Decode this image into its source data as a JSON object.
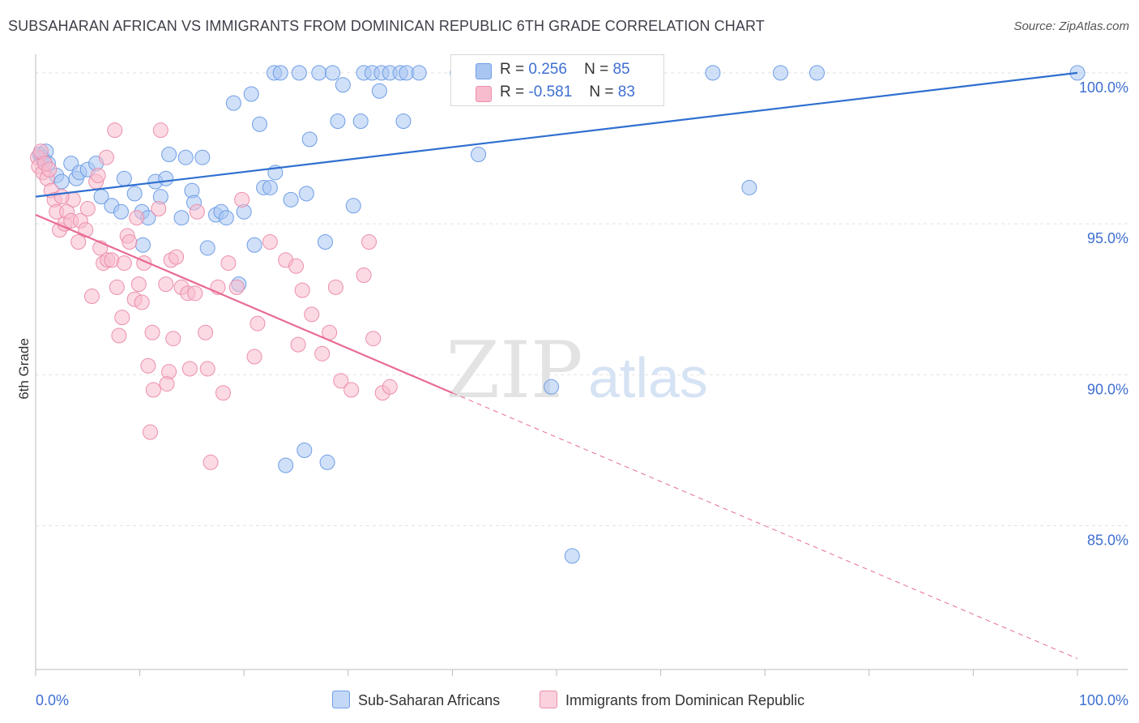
{
  "header": {
    "title": "SUBSAHARAN AFRICAN VS IMMIGRANTS FROM DOMINICAN REPUBLIC 6TH GRADE CORRELATION CHART",
    "source": "Source: ZipAtlas.com"
  },
  "legend": {
    "series1": {
      "r_label": "R =",
      "r_value": "0.256",
      "n_label": "N =",
      "n_value": "85"
    },
    "series2": {
      "r_label": "R =",
      "r_value": "-0.581",
      "n_label": "N =",
      "n_value": "83"
    }
  },
  "watermark": {
    "zip": "ZIP",
    "atlas": "atlas"
  },
  "colors": {
    "blue_fill": "#a9c6f2",
    "blue_stroke": "#6f9ee6",
    "blue_line": "#2f6fd0",
    "pink_fill": "#f7bccd",
    "pink_stroke": "#ec8fab",
    "pink_line": "#e86b93",
    "tick_text": "#3e6fd1"
  },
  "chart_data": {
    "type": "scatter",
    "title": "SUBSAHARAN AFRICAN VS IMMIGRANTS FROM DOMINICAN REPUBLIC 6TH GRADE CORRELATION CHART",
    "xlabel": "",
    "ylabel": "6th Grade",
    "xlim": [
      0,
      100
    ],
    "ylim": [
      80.4,
      100.4
    ],
    "x_ticks": [
      "0.0%",
      "100.0%"
    ],
    "y_ticks": [
      {
        "value": 100,
        "label": "100.0%"
      },
      {
        "value": 95,
        "label": "95.0%"
      },
      {
        "value": 90,
        "label": "90.0%"
      },
      {
        "value": 85,
        "label": "85.0%"
      }
    ],
    "grid": true,
    "legend_position": "top-center",
    "series": [
      {
        "name": "Sub-Saharan Africans",
        "color": "#a9c6f2",
        "points": [
          [
            0.4,
            97.3
          ],
          [
            0.6,
            97.2
          ],
          [
            0.8,
            97.1
          ],
          [
            1.0,
            97.4
          ],
          [
            1.2,
            97.0
          ],
          [
            2.0,
            96.6
          ],
          [
            2.5,
            96.4
          ],
          [
            3.4,
            97.0
          ],
          [
            3.9,
            96.5
          ],
          [
            4.2,
            96.7
          ],
          [
            5.0,
            96.8
          ],
          [
            5.8,
            97.0
          ],
          [
            6.3,
            95.9
          ],
          [
            7.3,
            95.6
          ],
          [
            8.5,
            96.5
          ],
          [
            8.2,
            95.4
          ],
          [
            9.5,
            96.0
          ],
          [
            10.2,
            95.4
          ],
          [
            10.3,
            94.3
          ],
          [
            10.8,
            95.2
          ],
          [
            11.5,
            96.4
          ],
          [
            12.0,
            95.9
          ],
          [
            12.5,
            96.5
          ],
          [
            12.8,
            97.3
          ],
          [
            14.0,
            95.2
          ],
          [
            14.4,
            97.2
          ],
          [
            15.0,
            96.1
          ],
          [
            15.2,
            95.7
          ],
          [
            16.0,
            97.2
          ],
          [
            16.5,
            94.2
          ],
          [
            17.3,
            95.3
          ],
          [
            17.8,
            95.4
          ],
          [
            18.3,
            95.2
          ],
          [
            19.0,
            99.0
          ],
          [
            19.5,
            93.0
          ],
          [
            20.0,
            95.4
          ],
          [
            20.7,
            99.3
          ],
          [
            21.0,
            94.3
          ],
          [
            21.5,
            98.3
          ],
          [
            21.9,
            96.2
          ],
          [
            22.5,
            96.2
          ],
          [
            22.9,
            100.0
          ],
          [
            23.0,
            96.7
          ],
          [
            23.5,
            100.0
          ],
          [
            24.0,
            87.0
          ],
          [
            24.5,
            95.8
          ],
          [
            25.3,
            100.0
          ],
          [
            25.8,
            87.5
          ],
          [
            26.0,
            96.0
          ],
          [
            26.3,
            97.8
          ],
          [
            27.2,
            100.0
          ],
          [
            27.8,
            94.4
          ],
          [
            28.0,
            87.1
          ],
          [
            28.5,
            100.0
          ],
          [
            29.0,
            98.4
          ],
          [
            29.5,
            99.6
          ],
          [
            30.5,
            95.6
          ],
          [
            31.2,
            98.4
          ],
          [
            31.5,
            100.0
          ],
          [
            32.3,
            100.0
          ],
          [
            33.0,
            99.4
          ],
          [
            33.2,
            100.0
          ],
          [
            34.0,
            100.0
          ],
          [
            35.3,
            98.4
          ],
          [
            35.0,
            100.0
          ],
          [
            35.6,
            100.0
          ],
          [
            36.8,
            100.0
          ],
          [
            40.5,
            100.0
          ],
          [
            40.8,
            100.0
          ],
          [
            41.5,
            99.7
          ],
          [
            42.0,
            100.0
          ],
          [
            42.5,
            97.3
          ],
          [
            46.5,
            100.0
          ],
          [
            50.0,
            100.0
          ],
          [
            52.0,
            100.0
          ],
          [
            54.5,
            100.0
          ],
          [
            58.0,
            100.0
          ],
          [
            59.0,
            100.0
          ],
          [
            47.5,
            100.0
          ],
          [
            49.5,
            89.6
          ],
          [
            51.5,
            84.0
          ],
          [
            65.0,
            100.0
          ],
          [
            68.5,
            96.2
          ],
          [
            71.5,
            100.0
          ],
          [
            75.0,
            100.0
          ],
          [
            100.0,
            100.0
          ]
        ]
      },
      {
        "name": "Immigrants from Dominican Republic",
        "color": "#f7bccd",
        "points": [
          [
            0.2,
            97.2
          ],
          [
            0.3,
            96.9
          ],
          [
            0.5,
            97.4
          ],
          [
            0.7,
            96.7
          ],
          [
            0.9,
            97.0
          ],
          [
            1.1,
            96.5
          ],
          [
            1.5,
            96.1
          ],
          [
            1.8,
            95.8
          ],
          [
            2.0,
            95.4
          ],
          [
            2.3,
            94.8
          ],
          [
            2.8,
            95.0
          ],
          [
            3.0,
            95.4
          ],
          [
            3.4,
            95.1
          ],
          [
            3.6,
            95.8
          ],
          [
            4.1,
            94.4
          ],
          [
            4.3,
            95.1
          ],
          [
            4.8,
            94.8
          ],
          [
            5.0,
            95.5
          ],
          [
            5.4,
            92.6
          ],
          [
            5.8,
            96.4
          ],
          [
            6.2,
            94.2
          ],
          [
            6.5,
            93.7
          ],
          [
            6.8,
            97.2
          ],
          [
            6.9,
            93.8
          ],
          [
            7.3,
            93.8
          ],
          [
            7.6,
            98.1
          ],
          [
            7.8,
            92.9
          ],
          [
            8.0,
            91.3
          ],
          [
            8.3,
            91.9
          ],
          [
            8.5,
            93.7
          ],
          [
            8.8,
            94.6
          ],
          [
            9.0,
            94.4
          ],
          [
            9.5,
            92.5
          ],
          [
            9.9,
            93.0
          ],
          [
            10.2,
            92.4
          ],
          [
            10.4,
            93.7
          ],
          [
            10.8,
            90.3
          ],
          [
            11.2,
            91.4
          ],
          [
            11.3,
            89.5
          ],
          [
            11.8,
            95.5
          ],
          [
            12.0,
            98.1
          ],
          [
            12.5,
            93.0
          ],
          [
            12.8,
            90.1
          ],
          [
            12.6,
            89.7
          ],
          [
            13.0,
            93.8
          ],
          [
            13.2,
            91.2
          ],
          [
            13.5,
            93.9
          ],
          [
            14.0,
            92.9
          ],
          [
            14.6,
            92.7
          ],
          [
            14.8,
            90.2
          ],
          [
            15.3,
            92.7
          ],
          [
            16.3,
            91.4
          ],
          [
            16.5,
            90.2
          ],
          [
            16.8,
            87.1
          ],
          [
            17.5,
            92.9
          ],
          [
            18.0,
            89.4
          ],
          [
            18.5,
            93.7
          ],
          [
            19.3,
            92.9
          ],
          [
            19.8,
            95.8
          ],
          [
            21.0,
            90.6
          ],
          [
            21.3,
            91.7
          ],
          [
            22.5,
            94.4
          ],
          [
            24.0,
            93.8
          ],
          [
            25.0,
            93.6
          ],
          [
            25.2,
            91.0
          ],
          [
            25.6,
            92.8
          ],
          [
            26.5,
            92.0
          ],
          [
            27.5,
            90.7
          ],
          [
            28.2,
            91.4
          ],
          [
            28.8,
            92.9
          ],
          [
            29.3,
            89.8
          ],
          [
            30.3,
            89.5
          ],
          [
            31.5,
            93.3
          ],
          [
            32.0,
            94.4
          ],
          [
            32.4,
            91.2
          ],
          [
            33.3,
            89.4
          ],
          [
            34.0,
            89.6
          ],
          [
            1.3,
            96.8
          ],
          [
            2.5,
            95.9
          ],
          [
            6.0,
            96.6
          ],
          [
            9.7,
            95.2
          ],
          [
            11.0,
            88.1
          ],
          [
            15.5,
            95.4
          ]
        ]
      }
    ],
    "trend_lines": [
      {
        "series": "Sub-Saharan Africans",
        "x": [
          0,
          100
        ],
        "y": [
          95.9,
          100.0
        ],
        "style": "solid"
      },
      {
        "series": "Immigrants from Dominican Republic",
        "x": [
          0,
          40
        ],
        "y": [
          95.3,
          89.4
        ],
        "style": "solid"
      },
      {
        "series": "Immigrants from Dominican Republic",
        "x": [
          40,
          100
        ],
        "y": [
          89.4,
          80.6
        ],
        "style": "dashed"
      }
    ]
  }
}
